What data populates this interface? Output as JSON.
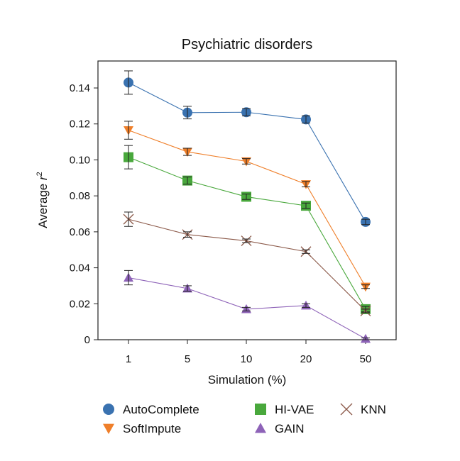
{
  "chart_data": {
    "type": "line",
    "title": "Psychiatric disorders",
    "xlabel": "Simulation (%)",
    "ylabel_main": "Average ",
    "ylabel_var": "r",
    "ylabel_sup": "2",
    "categories": [
      "1",
      "5",
      "10",
      "20",
      "50"
    ],
    "ylim": [
      0,
      0.155
    ],
    "yticks": [
      0,
      0.02,
      0.04,
      0.06,
      0.08,
      0.1,
      0.12,
      0.14
    ],
    "ytick_labels": [
      "0",
      "0.02",
      "0.04",
      "0.06",
      "0.08",
      "0.10",
      "0.12",
      "0.14"
    ],
    "grid": false,
    "legend_position": "bottom",
    "series": [
      {
        "name": "AutoComplete",
        "marker": "circle",
        "color": "#3a72b0",
        "values": [
          0.143,
          0.1263,
          0.1265,
          0.1225,
          0.0655
        ],
        "err": [
          0.0065,
          0.0035,
          0.002,
          0.002,
          0.0015
        ]
      },
      {
        "name": "SoftImpute",
        "marker": "triangle-down",
        "color": "#ef7f2a",
        "values": [
          0.1165,
          0.1045,
          0.0992,
          0.0865,
          0.0295
        ],
        "err": [
          0.005,
          0.002,
          0.0015,
          0.0015,
          0.001
        ]
      },
      {
        "name": "HI-VAE",
        "marker": "square",
        "color": "#49a83c",
        "values": [
          0.1015,
          0.0885,
          0.0795,
          0.0745,
          0.017
        ],
        "err": [
          0.0065,
          0.002,
          0.0015,
          0.0015,
          0.0015
        ]
      },
      {
        "name": "GAIN",
        "marker": "triangle-up",
        "color": "#8e63b8",
        "values": [
          0.0345,
          0.0285,
          0.017,
          0.019,
          0.0005
        ],
        "err": [
          0.004,
          0.0015,
          0.001,
          0.001,
          0.0005
        ]
      },
      {
        "name": "KNN",
        "marker": "x",
        "color": "#8c5a4a",
        "values": [
          0.067,
          0.0585,
          0.055,
          0.049,
          0.016
        ],
        "err": [
          0.004,
          0.0015,
          0.001,
          0.001,
          0.001
        ]
      }
    ]
  }
}
